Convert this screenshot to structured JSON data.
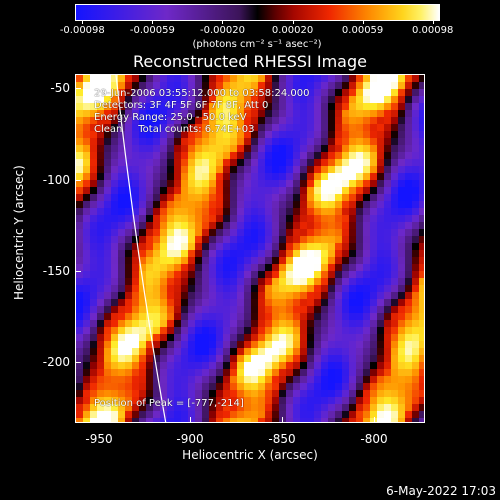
{
  "colorbar": {
    "tick_labels": [
      "-0.00098",
      "-0.00059",
      "-0.00020",
      "0.00020",
      "0.00059",
      "0.00098"
    ],
    "unit": "(photons cm⁻² s⁻¹ asec⁻²)"
  },
  "title": "Reconstructed RHESSI Image",
  "info": {
    "line1": "29-Jun-2006 03:55:12.000 to 03:58:24.000",
    "line2": "Detectors: 3F 4F 5F 6F 7F 8F, Att 0",
    "line3": "Energy Range: 25.0 - 50.0 keV",
    "line4": "Clean     Total counts: 6.74E+03"
  },
  "peak": "Position of Peak = [-777,-214]",
  "axes": {
    "xlabel": "Heliocentric X (arcsec)",
    "ylabel": "Heliocentric Y (arcsec)",
    "xticks": [
      "-950",
      "-900",
      "-850",
      "-800"
    ],
    "yticks": [
      "-50",
      "-100",
      "-150",
      "-200"
    ]
  },
  "footer": "6-May-2022 17:03"
}
